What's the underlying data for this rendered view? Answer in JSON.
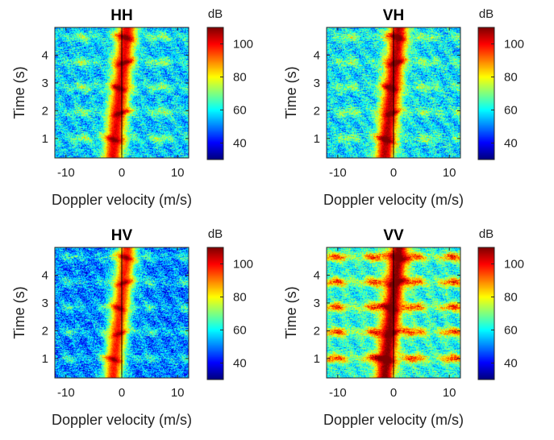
{
  "chart_data": [
    {
      "type": "heatmap",
      "title": "HH",
      "xlabel": "Doppler velocity (m/s)",
      "ylabel": "Time (s)",
      "xlim": [
        -12,
        12
      ],
      "ylim": [
        0.3,
        5.0
      ],
      "xticks": [
        -10,
        0,
        10
      ],
      "xtick_labels": [
        "-10",
        "0",
        "10"
      ],
      "yticks": [
        1,
        2,
        3,
        4
      ],
      "ytick_labels": [
        "1",
        "2",
        "3",
        "4"
      ],
      "colorbar": {
        "label": "dB",
        "range": [
          30,
          110
        ],
        "ticks": [
          40,
          60,
          80,
          100
        ],
        "tick_labels": [
          "40",
          "60",
          "80",
          "100"
        ],
        "colormap": "jet"
      },
      "level": {
        "background_db": 56,
        "band_boost_db": 16,
        "core_db": 102,
        "noise_db": 11
      },
      "line_x": 0
    },
    {
      "type": "heatmap",
      "title": "VH",
      "xlabel": "Doppler velocity (m/s)",
      "ylabel": "Time (s)",
      "xlim": [
        -12,
        12
      ],
      "ylim": [
        0.3,
        5.0
      ],
      "xticks": [
        -10,
        0,
        10
      ],
      "xtick_labels": [
        "-10",
        "0",
        "10"
      ],
      "yticks": [
        1,
        2,
        3,
        4
      ],
      "ytick_labels": [
        "1",
        "2",
        "3",
        "4"
      ],
      "colorbar": {
        "label": "dB",
        "range": [
          30,
          110
        ],
        "ticks": [
          40,
          60,
          80,
          100
        ],
        "tick_labels": [
          "40",
          "60",
          "80",
          "100"
        ],
        "colormap": "jet"
      },
      "level": {
        "background_db": 58,
        "band_boost_db": 14,
        "core_db": 106,
        "noise_db": 11
      },
      "line_x": 0
    },
    {
      "type": "heatmap",
      "title": "HV",
      "xlabel": "Doppler velocity (m/s)",
      "ylabel": "Time (s)",
      "xlim": [
        -12,
        12
      ],
      "ylim": [
        0.3,
        5.0
      ],
      "xticks": [
        -10,
        0,
        10
      ],
      "xtick_labels": [
        "-10",
        "0",
        "10"
      ],
      "yticks": [
        1,
        2,
        3,
        4
      ],
      "ytick_labels": [
        "1",
        "2",
        "3",
        "4"
      ],
      "colorbar": {
        "label": "dB",
        "range": [
          30,
          110
        ],
        "ticks": [
          40,
          60,
          80,
          100
        ],
        "tick_labels": [
          "40",
          "60",
          "80",
          "100"
        ],
        "colormap": "jet"
      },
      "level": {
        "background_db": 50,
        "band_boost_db": 12,
        "core_db": 98,
        "noise_db": 12
      },
      "line_x": 0
    },
    {
      "type": "heatmap",
      "title": "VV",
      "xlabel": "Doppler velocity (m/s)",
      "ylabel": "Time (s)",
      "xlim": [
        -12,
        12
      ],
      "ylim": [
        0.3,
        5.0
      ],
      "xticks": [
        -10,
        0,
        10
      ],
      "xtick_labels": [
        "-10",
        "0",
        "10"
      ],
      "yticks": [
        1,
        2,
        3,
        4
      ],
      "ytick_labels": [
        "1",
        "2",
        "3",
        "4"
      ],
      "colorbar": {
        "label": "dB",
        "range": [
          30,
          110
        ],
        "ticks": [
          40,
          60,
          80,
          100
        ],
        "tick_labels": [
          "40",
          "60",
          "80",
          "100"
        ],
        "colormap": "jet"
      },
      "level": {
        "background_db": 62,
        "band_boost_db": 34,
        "core_db": 110,
        "noise_db": 10
      },
      "line_x": 0
    }
  ]
}
